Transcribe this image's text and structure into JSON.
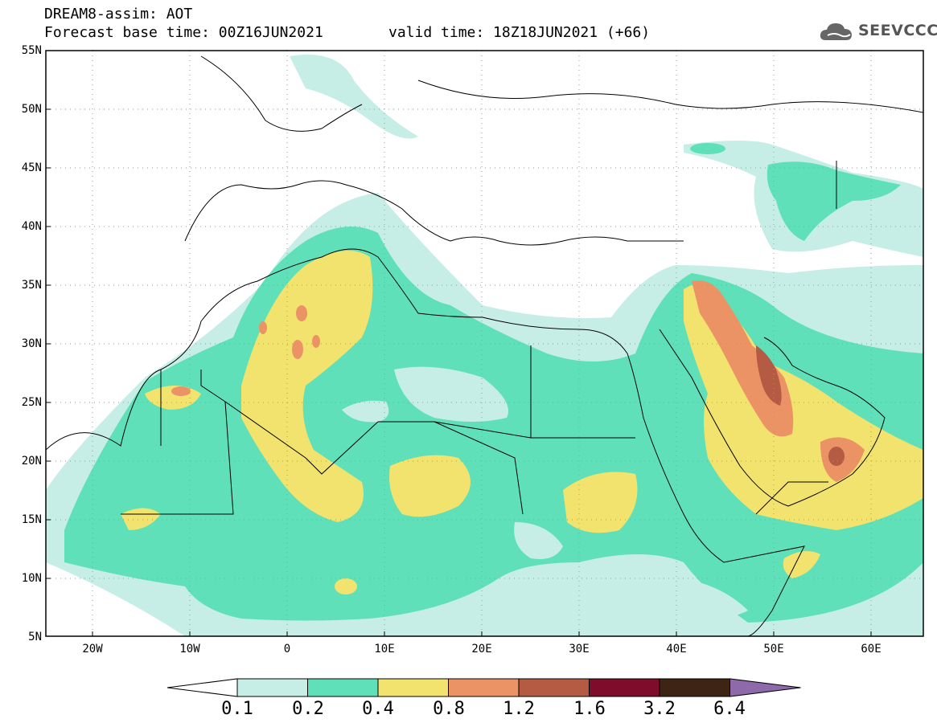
{
  "header": {
    "title_line1": "DREAM8-assim: AOT",
    "title_line2": "Forecast base time: 00Z16JUN2021",
    "valid_time": "valid time: 18Z18JUN2021 (+66)",
    "logo_text": "SEEVCCC"
  },
  "axes": {
    "lat_labels": [
      "55N",
      "50N",
      "45N",
      "40N",
      "35N",
      "30N",
      "25N",
      "20N",
      "15N",
      "10N",
      "5N"
    ],
    "lon_labels": [
      "20W",
      "10W",
      "0",
      "10E",
      "20E",
      "30E",
      "40E",
      "50E",
      "60E"
    ]
  },
  "colorbar": {
    "levels": [
      "0.1",
      "0.2",
      "0.4",
      "0.8",
      "1.2",
      "1.6",
      "3.2",
      "6.4"
    ],
    "colors": [
      "#c6eee6",
      "#5fe0b8",
      "#f2e26e",
      "#ec9366",
      "#b55a43",
      "#7e0c2a",
      "#3d2414",
      "#8f6aab"
    ]
  }
}
